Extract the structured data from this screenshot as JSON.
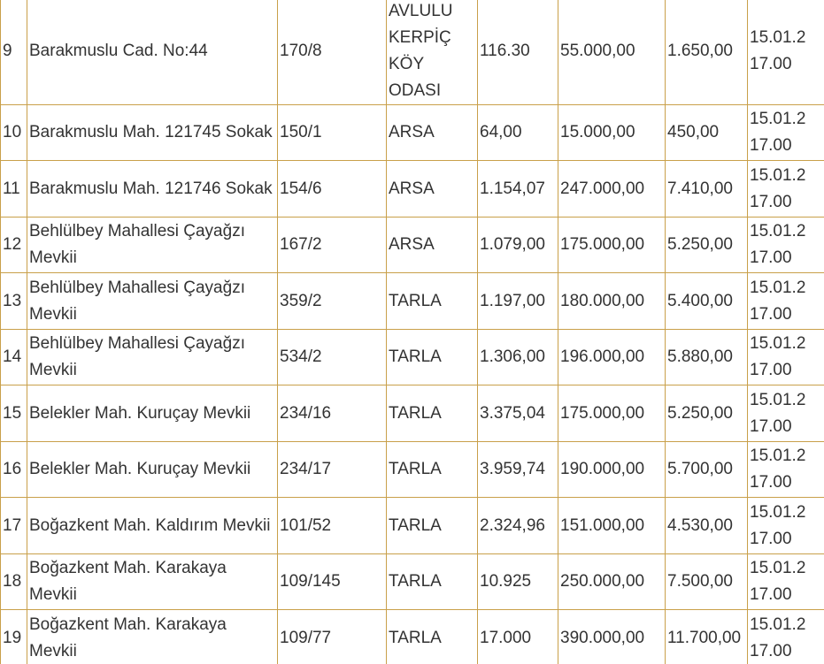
{
  "table": {
    "rows": [
      {
        "no": "9",
        "address": "Barakmuslu Cad. No:44",
        "parcel": "170/8",
        "type": "AVLULU KERPİÇ KÖY ODASI",
        "area": "116.30",
        "price": "55.000,00",
        "deposit": "1.650,00",
        "date": "15.01.2",
        "time": "17.00"
      },
      {
        "no": "10",
        "address": "Barakmuslu Mah. 121745 Sokak",
        "parcel": "150/1",
        "type": "ARSA",
        "area": "64,00",
        "price": "15.000,00",
        "deposit": "450,00",
        "date": "15.01.2",
        "time": "17.00"
      },
      {
        "no": "11",
        "address": "Barakmuslu Mah. 121746 Sokak",
        "parcel": "154/6",
        "type": "ARSA",
        "area": "1.154,07",
        "price": "247.000,00",
        "deposit": "7.410,00",
        "date": "15.01.2",
        "time": "17.00"
      },
      {
        "no": "12",
        "address": "Behlülbey Mahallesi Çayağzı Mevkii",
        "parcel": "167/2",
        "type": "ARSA",
        "area": "1.079,00",
        "price": "175.000,00",
        "deposit": "5.250,00",
        "date": "15.01.2",
        "time": "17.00"
      },
      {
        "no": "13",
        "address": "Behlülbey Mahallesi Çayağzı Mevkii",
        "parcel": "359/2",
        "type": "TARLA",
        "area": "1.197,00",
        "price": "180.000,00",
        "deposit": "5.400,00",
        "date": "15.01.2",
        "time": "17.00"
      },
      {
        "no": "14",
        "address": "Behlülbey Mahallesi Çayağzı Mevkii",
        "parcel": "534/2",
        "type": "TARLA",
        "area": "1.306,00",
        "price": "196.000,00",
        "deposit": "5.880,00",
        "date": "15.01.2",
        "time": "17.00"
      },
      {
        "no": "15",
        "address": "Belekler Mah. Kuruçay Mevkii",
        "parcel": "234/16",
        "type": "TARLA",
        "area": "3.375,04",
        "price": "175.000,00",
        "deposit": "5.250,00",
        "date": "15.01.2",
        "time": "17.00"
      },
      {
        "no": "16",
        "address": "Belekler Mah. Kuruçay Mevkii",
        "parcel": "234/17",
        "type": "TARLA",
        "area": "3.959,74",
        "price": "190.000,00",
        "deposit": "5.700,00",
        "date": "15.01.2",
        "time": "17.00"
      },
      {
        "no": "17",
        "address": "Boğazkent Mah. Kaldırım Mevkii",
        "parcel": "101/52",
        "type": "TARLA",
        "area": "2.324,96",
        "price": "151.000,00",
        "deposit": "4.530,00",
        "date": "15.01.2",
        "time": "17.00"
      },
      {
        "no": "18",
        "address": "Boğazkent Mah. Karakaya Mevkii",
        "parcel": "109/145",
        "type": "TARLA",
        "area": "10.925",
        "price": "250.000,00",
        "deposit": "7.500,00",
        "date": "15.01.2",
        "time": "17.00"
      },
      {
        "no": "19",
        "address": "Boğazkent Mah. Karakaya Mevkii",
        "parcel": "109/77",
        "type": "TARLA",
        "area": "17.000",
        "price": "390.000,00",
        "deposit": "11.700,00",
        "date": "15.01.2",
        "time": "17.00"
      }
    ]
  }
}
